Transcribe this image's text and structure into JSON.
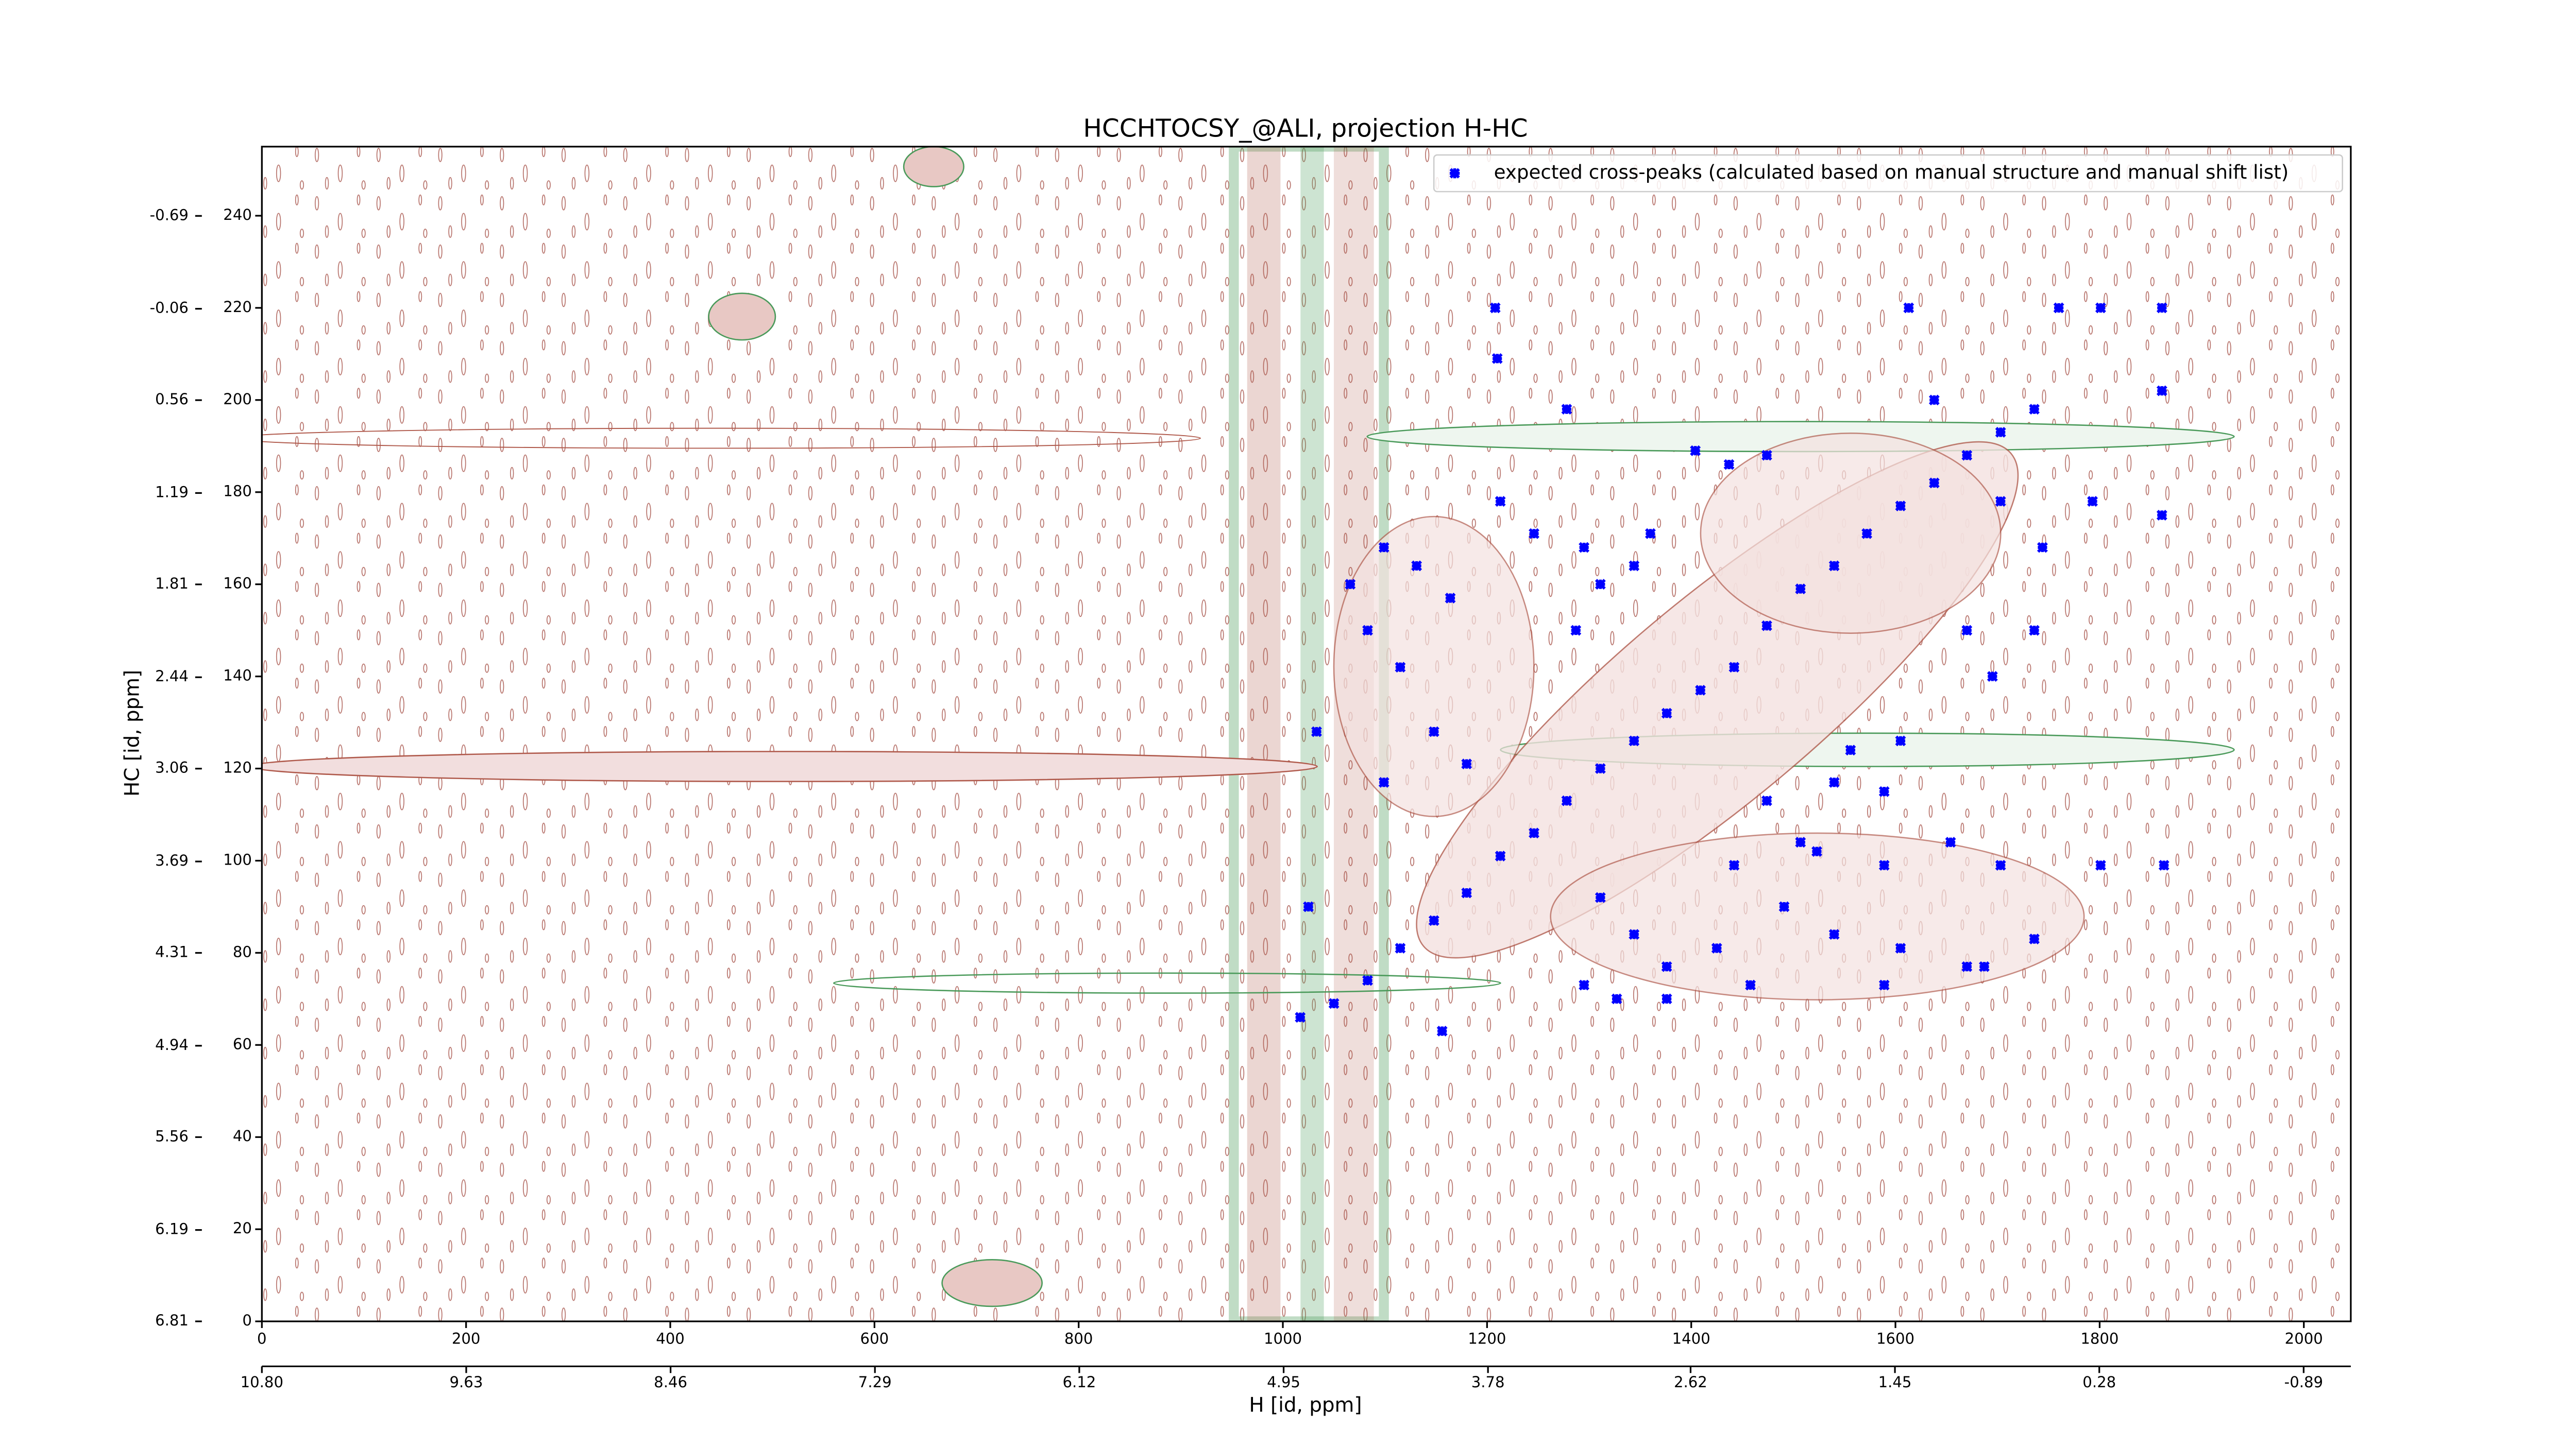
{
  "chart_data": {
    "type": "scatter",
    "title": "HCCHTOCSY_@ALI, projection H-HC",
    "xlabel": "H [id, ppm]",
    "ylabel": "HC [id, ppm]",
    "xlim": [
      0,
      2046
    ],
    "xticks": [
      0,
      200,
      400,
      600,
      800,
      1000,
      1200,
      1400,
      1600,
      1800,
      2000
    ],
    "ylim": [
      0,
      255
    ],
    "yticks": [
      0,
      20,
      40,
      60,
      80,
      100,
      120,
      140,
      160,
      180,
      200,
      220,
      240
    ],
    "x2lim": [
      10.8,
      -1.16
    ],
    "x2ticks": [
      {
        "value": 10.8,
        "label": "10.80"
      },
      9.63,
      8.46,
      7.29,
      6.12,
      4.95,
      3.78,
      2.62,
      1.45,
      0.28,
      -0.89
    ],
    "y2lim": [
      6.81,
      -1.16
    ],
    "y2ticks": [
      6.81,
      6.19,
      5.56,
      4.94,
      4.31,
      3.69,
      3.06,
      2.44,
      1.81,
      1.19,
      0.56,
      -0.06,
      -0.69
    ],
    "legend": "upper right",
    "series": [
      {
        "name": "expected cross-peaks (calculated based on manual structure and manual shift list)",
        "color": "#0000ff",
        "x": [
          1050,
          1083,
          1115,
          1148,
          1180,
          1213,
          1246,
          1278,
          1311,
          1344,
          1376,
          1409,
          1442,
          1474,
          1507,
          1540,
          1572,
          1605,
          1638,
          1670,
          1703,
          1736,
          1099,
          1131,
          1164,
          1083,
          1115,
          1148,
          1180,
          1099,
          1033,
          1066,
          1213,
          1246,
          1295,
          1311,
          1344,
          1360,
          1287,
          1208,
          1210,
          1278,
          1404,
          1437,
          1474,
          1613,
          1638,
          1760,
          1801,
          1861,
          1861,
          1703,
          1744,
          1793,
          1861,
          1670,
          1736,
          1695,
          1556,
          1605,
          1540,
          1589,
          1523,
          1589,
          1654,
          1703,
          1801,
          1863,
          1311,
          1344,
          1376,
          1425,
          1491,
          1540,
          1605,
          1670,
          1736,
          1687,
          1589,
          1458,
          1376,
          1295,
          1327,
          1025,
          1017,
          1156,
          1507,
          1474,
          1442
        ],
        "y": [
          69,
          74,
          81,
          87,
          93,
          101,
          106,
          113,
          120,
          126,
          132,
          137,
          142,
          151,
          159,
          164,
          171,
          177,
          182,
          188,
          193,
          198,
          168,
          164,
          157,
          150,
          142,
          128,
          121,
          117,
          128,
          160,
          178,
          171,
          168,
          160,
          164,
          171,
          150,
          220,
          209,
          198,
          189,
          186,
          188,
          220,
          200,
          220,
          220,
          220,
          202,
          178,
          168,
          178,
          175,
          150,
          150,
          140,
          124,
          126,
          117,
          115,
          102,
          99,
          104,
          99,
          99,
          99,
          92,
          84,
          77,
          81,
          90,
          84,
          81,
          77,
          83,
          77,
          73,
          73,
          70,
          73,
          70,
          90,
          66,
          63,
          104,
          113,
          99
        ]
      }
    ]
  }
}
